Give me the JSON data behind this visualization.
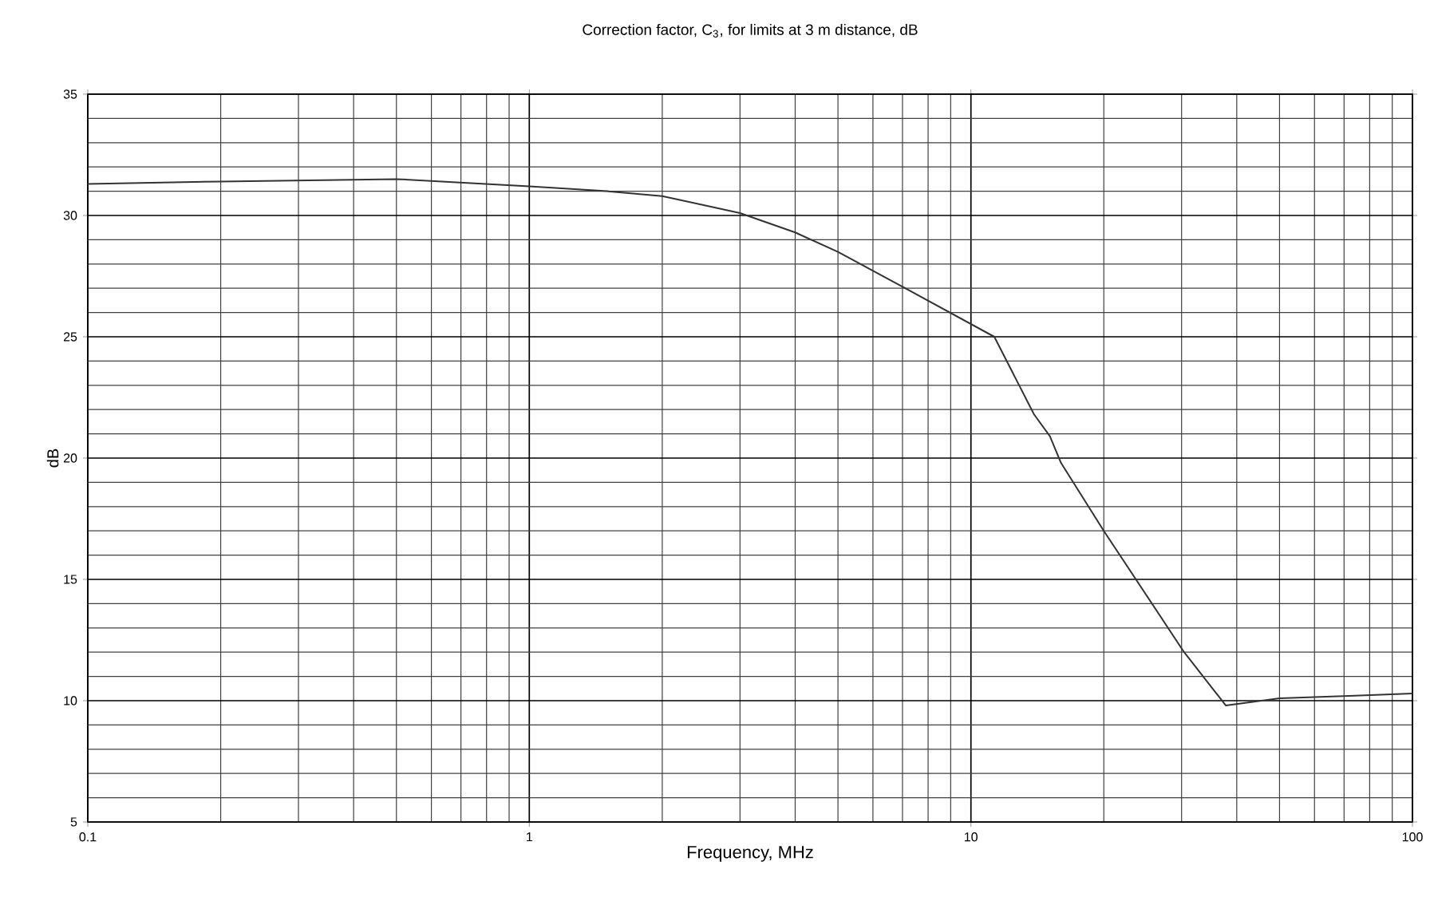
{
  "chart_data": {
    "type": "line",
    "title": "Correction factor, C$_{3}$, for limits at 3 m distance, dB",
    "xlabel": "Frequency, MHz",
    "ylabel": "dB",
    "log": "x",
    "grid": true,
    "marker": "none",
    "line_style": "solid",
    "xlim": [
      0.1,
      100
    ],
    "xticks": [
      0.1,
      1,
      10,
      100
    ],
    "ylim": [
      5,
      35
    ],
    "yticks": [
      5,
      10,
      15,
      20,
      25,
      30,
      35
    ],
    "series": [
      {
        "color": "#333333",
        "x": [
          0.1,
          0.2,
          0.5,
          1,
          1.5,
          2,
          3,
          4,
          5,
          7.1,
          11.3,
          13.9,
          15.1,
          16.0,
          20,
          30.4,
          37.8,
          50,
          72,
          100
        ],
        "values": [
          31.3,
          31.4,
          31.5,
          31.2,
          31.0,
          30.8,
          30.1,
          29.3,
          28.5,
          27.0,
          25.0,
          21.8,
          20.9,
          19.8,
          17.0,
          12.0,
          9.8,
          10.1,
          10.2,
          10.3
        ]
      }
    ]
  }
}
